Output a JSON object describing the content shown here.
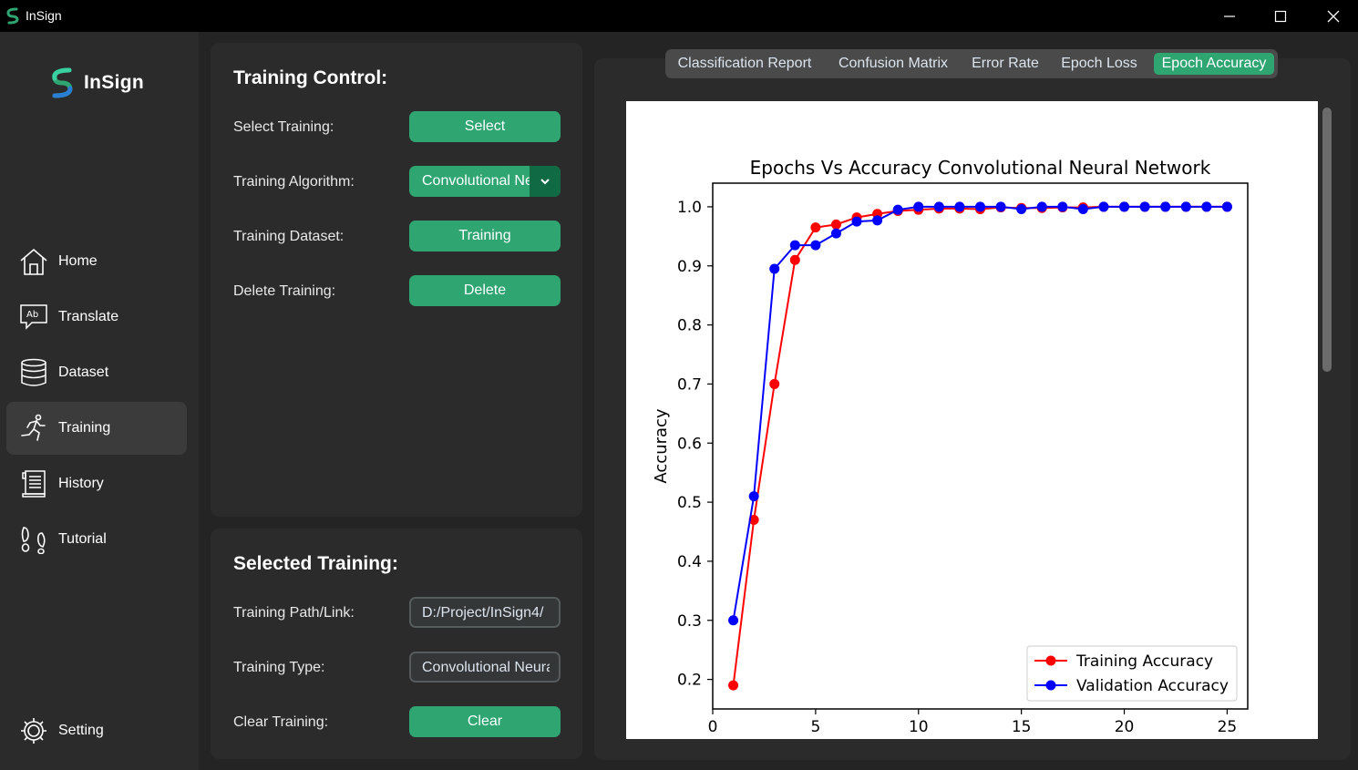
{
  "window": {
    "title": "InSign",
    "minimize_icon": "minimize-icon",
    "maximize_icon": "maximize-icon",
    "close_icon": "close-icon"
  },
  "sidebar": {
    "brand": "InSign",
    "items": [
      {
        "label": "Home",
        "icon": "home-icon"
      },
      {
        "label": "Translate",
        "icon": "translate-icon"
      },
      {
        "label": "Dataset",
        "icon": "database-icon"
      },
      {
        "label": "Training",
        "icon": "running-icon",
        "active": true
      },
      {
        "label": "History",
        "icon": "scroll-icon"
      },
      {
        "label": "Tutorial",
        "icon": "footprints-icon"
      }
    ],
    "setting": {
      "label": "Setting",
      "icon": "gear-icon"
    }
  },
  "training_control": {
    "title": "Training Control:",
    "select_label": "Select Training:",
    "select_button": "Select",
    "algorithm_label": "Training Algorithm:",
    "algorithm_value": "Convolutional Neural Network",
    "dataset_label": "Training Dataset:",
    "dataset_button": "Training",
    "delete_label": "Delete Training:",
    "delete_button": "Delete"
  },
  "selected_training": {
    "title": "Selected Training:",
    "path_label": "Training Path/Link:",
    "path_value": "D:/Project/InSign4/",
    "type_label": "Training Type:",
    "type_value": "Convolutional Neural Network",
    "clear_label": "Clear Training:",
    "clear_button": "Clear"
  },
  "tabs": [
    {
      "label": "Classification Report"
    },
    {
      "label": "Confusion Matrix"
    },
    {
      "label": "Error Rate"
    },
    {
      "label": "Epoch Loss"
    },
    {
      "label": "Epoch Accuracy",
      "active": true
    }
  ],
  "colors": {
    "accent": "#2fa572",
    "accent_dark": "#106a43",
    "training_series": "#ff0000",
    "validation_series": "#0000ff"
  },
  "chart_data": {
    "type": "line",
    "title": "Epochs Vs Accuracy Convolutional Neural Network",
    "xlabel": "",
    "ylabel": "Accuracy",
    "xlim": [
      0,
      26
    ],
    "ylim": [
      0.15,
      1.04
    ],
    "xticks": [
      0,
      5,
      10,
      15,
      20,
      25
    ],
    "yticks": [
      0.2,
      0.3,
      0.4,
      0.5,
      0.6,
      0.7,
      0.8,
      0.9,
      1.0
    ],
    "grid": false,
    "legend_position": "lower-right",
    "x": [
      1,
      2,
      3,
      4,
      5,
      6,
      7,
      8,
      9,
      10,
      11,
      12,
      13,
      14,
      15,
      16,
      17,
      18,
      19,
      20,
      21,
      22,
      23,
      24,
      25
    ],
    "series": [
      {
        "name": "Training Accuracy",
        "color": "#ff0000",
        "values": [
          0.19,
          0.47,
          0.7,
          0.91,
          0.965,
          0.97,
          0.982,
          0.988,
          0.993,
          0.995,
          0.997,
          0.997,
          0.996,
          0.999,
          0.998,
          0.998,
          0.999,
          0.999,
          1.0,
          1.0,
          1.0,
          1.0,
          1.0,
          1.0,
          1.0
        ]
      },
      {
        "name": "Validation Accuracy",
        "color": "#0000ff",
        "values": [
          0.3,
          0.51,
          0.895,
          0.935,
          0.935,
          0.955,
          0.975,
          0.977,
          0.995,
          1.0,
          1.0,
          1.0,
          1.0,
          1.0,
          0.996,
          1.0,
          1.0,
          0.996,
          1.0,
          1.0,
          1.0,
          1.0,
          1.0,
          1.0,
          1.0
        ]
      }
    ]
  }
}
